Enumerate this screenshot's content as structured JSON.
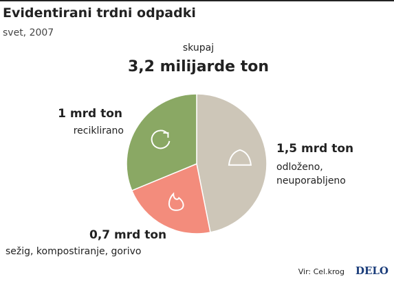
{
  "chart_data": {
    "type": "pie",
    "title": "Evidentirani trdni odpadki",
    "subtitle": "svet, 2007",
    "total_caption": "skupaj",
    "total_label": "3,2 milijarde ton",
    "categories": [
      "odloženo, neuporabljeno",
      "sežig, kompostiranje, gorivo",
      "reciklirano"
    ],
    "values": [
      1.5,
      0.7,
      1
    ],
    "value_labels": [
      "1,5 mrd ton",
      "0,7 mrd ton",
      "1 mrd ton"
    ],
    "colors": [
      "#cdc6b8",
      "#f38c7c",
      "#8aa864"
    ],
    "source": "Vir: Cel.krog",
    "publisher": "DELO"
  }
}
